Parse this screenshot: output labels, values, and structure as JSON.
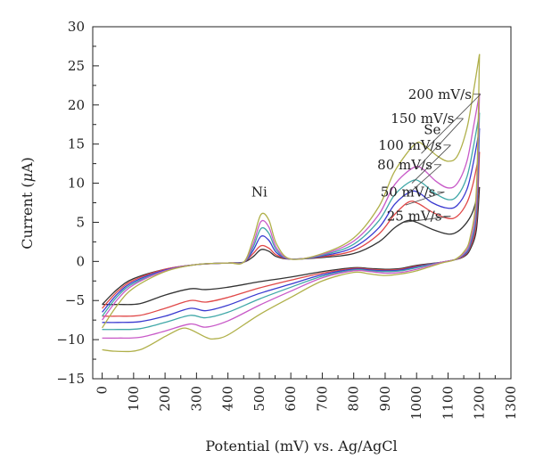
{
  "chart_data": {
    "type": "line",
    "title": "",
    "xlabel": "Potential (mV) vs. Ag/AgCl",
    "ylabel_prefix": "Current (",
    "ylabel_mu": "μ",
    "ylabel_suffix": "A)",
    "xlim": [
      -30,
      1300
    ],
    "ylim": [
      -15,
      30
    ],
    "x_ticks": [
      0,
      100,
      200,
      300,
      400,
      500,
      600,
      700,
      800,
      900,
      1000,
      1100,
      1200,
      1300
    ],
    "y_ticks": [
      -15,
      -10,
      -5,
      0,
      5,
      10,
      15,
      20,
      25,
      30
    ],
    "grid": false,
    "annotations": [
      {
        "text": "Ni",
        "x": 500,
        "y": 8.3
      },
      {
        "text": "Se",
        "x": 1050,
        "y": 16.3
      }
    ],
    "series": [
      {
        "name": "25 mV/s",
        "color": "#333333",
        "label_at": [
          1080,
          5.2
        ],
        "arrow_to": [
          960,
          5.0
        ],
        "forward": [
          [
            0,
            -5.5
          ],
          [
            50,
            -3.5
          ],
          [
            100,
            -2.2
          ],
          [
            200,
            -1.0
          ],
          [
            300,
            -0.4
          ],
          [
            400,
            -0.2
          ],
          [
            450,
            -0.1
          ],
          [
            480,
            0.6
          ],
          [
            505,
            1.5
          ],
          [
            530,
            1.3
          ],
          [
            555,
            0.6
          ],
          [
            600,
            0.3
          ],
          [
            700,
            0.5
          ],
          [
            800,
            1.0
          ],
          [
            880,
            2.5
          ],
          [
            930,
            4.3
          ],
          [
            970,
            5.2
          ],
          [
            1000,
            5.0
          ],
          [
            1050,
            4.1
          ],
          [
            1100,
            3.5
          ],
          [
            1130,
            3.8
          ],
          [
            1160,
            5.0
          ],
          [
            1180,
            6.5
          ],
          [
            1200,
            9.5
          ]
        ],
        "reverse": [
          [
            1200,
            9.5
          ],
          [
            1190,
            4.0
          ],
          [
            1170,
            1.5
          ],
          [
            1150,
            0.6
          ],
          [
            1120,
            0.2
          ],
          [
            1080,
            -0.1
          ],
          [
            1000,
            -0.5
          ],
          [
            950,
            -0.9
          ],
          [
            900,
            -1.0
          ],
          [
            850,
            -0.9
          ],
          [
            800,
            -0.8
          ],
          [
            700,
            -1.3
          ],
          [
            600,
            -2.0
          ],
          [
            500,
            -2.6
          ],
          [
            400,
            -3.3
          ],
          [
            330,
            -3.6
          ],
          [
            280,
            -3.5
          ],
          [
            200,
            -4.3
          ],
          [
            120,
            -5.4
          ],
          [
            50,
            -5.5
          ],
          [
            0,
            -5.5
          ]
        ]
      },
      {
        "name": "50 mV/s",
        "color": "#e04848",
        "label_at": [
          1060,
          8.3
        ],
        "arrow_to": [
          965,
          7.2
        ],
        "forward": [
          [
            0,
            -6.0
          ],
          [
            50,
            -3.8
          ],
          [
            100,
            -2.4
          ],
          [
            200,
            -1.0
          ],
          [
            300,
            -0.4
          ],
          [
            400,
            -0.2
          ],
          [
            450,
            -0.1
          ],
          [
            480,
            1.0
          ],
          [
            505,
            2.0
          ],
          [
            530,
            1.7
          ],
          [
            555,
            0.8
          ],
          [
            600,
            0.3
          ],
          [
            700,
            0.6
          ],
          [
            800,
            1.4
          ],
          [
            880,
            3.5
          ],
          [
            930,
            6.0
          ],
          [
            975,
            7.6
          ],
          [
            1005,
            7.4
          ],
          [
            1050,
            6.3
          ],
          [
            1100,
            5.5
          ],
          [
            1130,
            5.8
          ],
          [
            1160,
            7.5
          ],
          [
            1180,
            10.0
          ],
          [
            1200,
            14.0
          ]
        ],
        "reverse": [
          [
            1200,
            14.0
          ],
          [
            1190,
            5.0
          ],
          [
            1170,
            1.8
          ],
          [
            1150,
            0.7
          ],
          [
            1120,
            0.2
          ],
          [
            1080,
            -0.1
          ],
          [
            1000,
            -0.6
          ],
          [
            950,
            -1.0
          ],
          [
            900,
            -1.1
          ],
          [
            850,
            -1.0
          ],
          [
            800,
            -0.9
          ],
          [
            700,
            -1.5
          ],
          [
            600,
            -2.4
          ],
          [
            500,
            -3.4
          ],
          [
            400,
            -4.6
          ],
          [
            330,
            -5.2
          ],
          [
            280,
            -5.0
          ],
          [
            200,
            -6.0
          ],
          [
            120,
            -6.9
          ],
          [
            50,
            -7.0
          ],
          [
            0,
            -7.0
          ]
        ]
      },
      {
        "name": "80 mV/s",
        "color": "#3a3ad0",
        "label_at": [
          1050,
          11.8
        ],
        "arrow_to": [
          970,
          8.5
        ],
        "forward": [
          [
            0,
            -6.5
          ],
          [
            50,
            -4.1
          ],
          [
            100,
            -2.6
          ],
          [
            200,
            -1.1
          ],
          [
            300,
            -0.4
          ],
          [
            400,
            -0.2
          ],
          [
            450,
            -0.1
          ],
          [
            480,
            1.4
          ],
          [
            505,
            3.2
          ],
          [
            530,
            2.7
          ],
          [
            555,
            1.1
          ],
          [
            600,
            0.3
          ],
          [
            700,
            0.7
          ],
          [
            800,
            1.8
          ],
          [
            880,
            4.3
          ],
          [
            930,
            7.3
          ],
          [
            980,
            8.9
          ],
          [
            1010,
            8.7
          ],
          [
            1050,
            7.5
          ],
          [
            1100,
            6.8
          ],
          [
            1130,
            7.2
          ],
          [
            1160,
            9.2
          ],
          [
            1180,
            12.5
          ],
          [
            1200,
            17.0
          ]
        ],
        "reverse": [
          [
            1200,
            17.0
          ],
          [
            1190,
            6.0
          ],
          [
            1170,
            2.0
          ],
          [
            1150,
            0.8
          ],
          [
            1120,
            0.2
          ],
          [
            1080,
            -0.1
          ],
          [
            1000,
            -0.7
          ],
          [
            950,
            -1.1
          ],
          [
            900,
            -1.2
          ],
          [
            850,
            -1.1
          ],
          [
            800,
            -1.0
          ],
          [
            700,
            -1.7
          ],
          [
            600,
            -2.9
          ],
          [
            500,
            -4.1
          ],
          [
            400,
            -5.6
          ],
          [
            330,
            -6.3
          ],
          [
            280,
            -6.0
          ],
          [
            200,
            -7.0
          ],
          [
            120,
            -7.7
          ],
          [
            50,
            -7.8
          ],
          [
            0,
            -7.8
          ]
        ]
      },
      {
        "name": "100 mV/s",
        "color": "#40a8a8",
        "label_at": [
          1080,
          14.3
        ],
        "arrow_to": [
          985,
          10.0
        ],
        "forward": [
          [
            0,
            -7.0
          ],
          [
            50,
            -4.4
          ],
          [
            100,
            -2.8
          ],
          [
            200,
            -1.2
          ],
          [
            300,
            -0.4
          ],
          [
            400,
            -0.2
          ],
          [
            450,
            -0.1
          ],
          [
            480,
            1.8
          ],
          [
            505,
            4.2
          ],
          [
            530,
            3.6
          ],
          [
            555,
            1.4
          ],
          [
            600,
            0.3
          ],
          [
            700,
            0.8
          ],
          [
            800,
            2.2
          ],
          [
            880,
            5.2
          ],
          [
            930,
            8.5
          ],
          [
            985,
            10.3
          ],
          [
            1015,
            10.1
          ],
          [
            1055,
            8.8
          ],
          [
            1100,
            7.9
          ],
          [
            1130,
            8.4
          ],
          [
            1160,
            10.8
          ],
          [
            1180,
            14.5
          ],
          [
            1200,
            19.0
          ]
        ],
        "reverse": [
          [
            1200,
            19.0
          ],
          [
            1190,
            6.5
          ],
          [
            1170,
            2.2
          ],
          [
            1150,
            0.9
          ],
          [
            1120,
            0.2
          ],
          [
            1080,
            -0.1
          ],
          [
            1000,
            -0.8
          ],
          [
            950,
            -1.2
          ],
          [
            900,
            -1.3
          ],
          [
            850,
            -1.2
          ],
          [
            800,
            -1.1
          ],
          [
            700,
            -1.9
          ],
          [
            600,
            -3.3
          ],
          [
            500,
            -4.8
          ],
          [
            400,
            -6.5
          ],
          [
            330,
            -7.2
          ],
          [
            280,
            -6.9
          ],
          [
            200,
            -7.8
          ],
          [
            120,
            -8.6
          ],
          [
            50,
            -8.7
          ],
          [
            0,
            -8.7
          ]
        ]
      },
      {
        "name": "150 mV/s",
        "color": "#c85ac8",
        "label_at": [
          1120,
          17.7
        ],
        "arrow_to": [
          1000,
          11.8
        ],
        "forward": [
          [
            0,
            -7.5
          ],
          [
            50,
            -4.8
          ],
          [
            100,
            -3.0
          ],
          [
            200,
            -1.2
          ],
          [
            300,
            -0.4
          ],
          [
            400,
            -0.2
          ],
          [
            450,
            -0.1
          ],
          [
            480,
            2.2
          ],
          [
            505,
            5.1
          ],
          [
            530,
            4.4
          ],
          [
            555,
            1.7
          ],
          [
            600,
            0.3
          ],
          [
            700,
            0.9
          ],
          [
            800,
            2.6
          ],
          [
            880,
            6.0
          ],
          [
            930,
            9.8
          ],
          [
            990,
            12.0
          ],
          [
            1020,
            11.8
          ],
          [
            1060,
            10.3
          ],
          [
            1100,
            9.4
          ],
          [
            1130,
            10.0
          ],
          [
            1160,
            12.8
          ],
          [
            1180,
            17.0
          ],
          [
            1200,
            21.5
          ]
        ],
        "reverse": [
          [
            1200,
            21.5
          ],
          [
            1190,
            7.5
          ],
          [
            1170,
            2.5
          ],
          [
            1150,
            1.0
          ],
          [
            1120,
            0.2
          ],
          [
            1080,
            -0.1
          ],
          [
            1000,
            -1.0
          ],
          [
            950,
            -1.4
          ],
          [
            900,
            -1.5
          ],
          [
            850,
            -1.3
          ],
          [
            800,
            -1.2
          ],
          [
            700,
            -2.1
          ],
          [
            600,
            -3.8
          ],
          [
            500,
            -5.6
          ],
          [
            400,
            -7.6
          ],
          [
            330,
            -8.4
          ],
          [
            280,
            -8.0
          ],
          [
            200,
            -8.9
          ],
          [
            120,
            -9.7
          ],
          [
            50,
            -9.8
          ],
          [
            0,
            -9.8
          ]
        ]
      },
      {
        "name": "200 mV/s",
        "color": "#b0b04a",
        "label_at": [
          1175,
          20.8
        ],
        "arrow_to": [
          1015,
          13.8
        ],
        "forward": [
          [
            0,
            -8.5
          ],
          [
            50,
            -5.5
          ],
          [
            100,
            -3.4
          ],
          [
            200,
            -1.3
          ],
          [
            300,
            -0.4
          ],
          [
            400,
            -0.2
          ],
          [
            450,
            -0.1
          ],
          [
            480,
            2.8
          ],
          [
            505,
            6.0
          ],
          [
            530,
            5.3
          ],
          [
            555,
            2.2
          ],
          [
            600,
            0.3
          ],
          [
            700,
            1.0
          ],
          [
            800,
            3.0
          ],
          [
            880,
            7.0
          ],
          [
            930,
            11.5
          ],
          [
            995,
            15.0
          ],
          [
            1025,
            14.8
          ],
          [
            1065,
            13.5
          ],
          [
            1100,
            12.8
          ],
          [
            1130,
            13.5
          ],
          [
            1160,
            17.0
          ],
          [
            1180,
            21.5
          ],
          [
            1200,
            26.5
          ]
        ],
        "reverse": [
          [
            1200,
            26.5
          ],
          [
            1190,
            9.0
          ],
          [
            1170,
            3.0
          ],
          [
            1150,
            1.2
          ],
          [
            1120,
            0.2
          ],
          [
            1080,
            -0.2
          ],
          [
            1000,
            -1.2
          ],
          [
            950,
            -1.6
          ],
          [
            900,
            -1.8
          ],
          [
            850,
            -1.6
          ],
          [
            800,
            -1.4
          ],
          [
            700,
            -2.5
          ],
          [
            600,
            -4.6
          ],
          [
            500,
            -6.8
          ],
          [
            400,
            -9.4
          ],
          [
            355,
            -9.9
          ],
          [
            330,
            -9.7
          ],
          [
            280,
            -8.7
          ],
          [
            250,
            -8.6
          ],
          [
            200,
            -9.6
          ],
          [
            120,
            -11.3
          ],
          [
            50,
            -11.5
          ],
          [
            0,
            -11.3
          ]
        ]
      }
    ]
  }
}
